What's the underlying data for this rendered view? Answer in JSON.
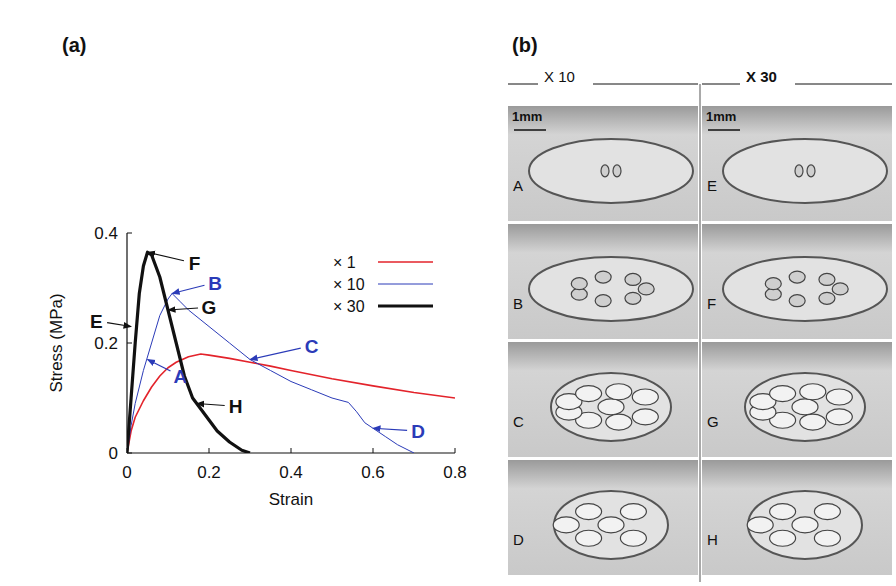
{
  "chart_data": {
    "type": "line",
    "x_label": "Strain",
    "y_label": "Stress (MPa)",
    "xlim": [
      0,
      0.8
    ],
    "xticks": [
      0,
      0.2,
      0.4,
      0.6,
      0.8
    ],
    "ylim": [
      0,
      0.4
    ],
    "yticks": [
      0,
      0.2,
      0.4
    ],
    "grid": false,
    "legend": "upper right",
    "series": [
      {
        "name": "× 1",
        "color": "#e3232b",
        "x": [
          0,
          0.01,
          0.02,
          0.04,
          0.06,
          0.08,
          0.1,
          0.12,
          0.15,
          0.18,
          0.2,
          0.25,
          0.3,
          0.35,
          0.4,
          0.5,
          0.6,
          0.7,
          0.8
        ],
        "values": [
          0,
          0.04,
          0.065,
          0.095,
          0.12,
          0.14,
          0.155,
          0.165,
          0.175,
          0.18,
          0.178,
          0.172,
          0.165,
          0.158,
          0.15,
          0.135,
          0.122,
          0.11,
          0.1
        ]
      },
      {
        "name": "× 10",
        "color": "#2b3bb8",
        "x": [
          0,
          0.01,
          0.02,
          0.04,
          0.06,
          0.08,
          0.1,
          0.11,
          0.13,
          0.15,
          0.2,
          0.25,
          0.3,
          0.35,
          0.4,
          0.45,
          0.5,
          0.54,
          0.56,
          0.58,
          0.6,
          0.63,
          0.66,
          0.7
        ],
        "values": [
          0,
          0.05,
          0.09,
          0.15,
          0.2,
          0.25,
          0.28,
          0.29,
          0.275,
          0.26,
          0.23,
          0.2,
          0.17,
          0.15,
          0.13,
          0.115,
          0.1,
          0.092,
          0.075,
          0.055,
          0.045,
          0.03,
          0.015,
          0
        ]
      },
      {
        "name": "× 30",
        "color": "#111111",
        "x": [
          0,
          0.01,
          0.02,
          0.03,
          0.04,
          0.05,
          0.06,
          0.07,
          0.08,
          0.1,
          0.12,
          0.14,
          0.16,
          0.18,
          0.2,
          0.22,
          0.25,
          0.28,
          0.3
        ],
        "values": [
          0,
          0.1,
          0.2,
          0.29,
          0.34,
          0.365,
          0.36,
          0.34,
          0.32,
          0.26,
          0.2,
          0.14,
          0.1,
          0.08,
          0.06,
          0.04,
          0.02,
          0.005,
          0
        ]
      }
    ],
    "annotations": [
      {
        "text": "E",
        "color": "#111111",
        "x": 0.01,
        "y": 0.23,
        "text_x": -0.075,
        "text_y": 0.24
      },
      {
        "text": "F",
        "color": "#111111",
        "x": 0.05,
        "y": 0.365,
        "text_x": 0.165,
        "text_y": 0.345
      },
      {
        "text": "B",
        "color": "#2b3bb8",
        "x": 0.11,
        "y": 0.29,
        "text_x": 0.215,
        "text_y": 0.31
      },
      {
        "text": "G",
        "color": "#111111",
        "x": 0.1,
        "y": 0.26,
        "text_x": 0.2,
        "text_y": 0.265
      },
      {
        "text": "A",
        "color": "#2b3bb8",
        "x": 0.05,
        "y": 0.17,
        "text_x": 0.13,
        "text_y": 0.14
      },
      {
        "text": "C",
        "color": "#2b3bb8",
        "x": 0.3,
        "y": 0.17,
        "text_x": 0.45,
        "text_y": 0.195
      },
      {
        "text": "H",
        "color": "#111111",
        "x": 0.17,
        "y": 0.09,
        "text_x": 0.265,
        "text_y": 0.085
      },
      {
        "text": "D",
        "color": "#2b3bb8",
        "x": 0.6,
        "y": 0.045,
        "text_x": 0.71,
        "text_y": 0.04
      }
    ]
  },
  "panels": {
    "a": "(a)",
    "b": "(b)"
  },
  "photos": {
    "columns": [
      {
        "title": "X 10",
        "scale_bar": "1mm",
        "frames": [
          "A",
          "B",
          "C",
          "D"
        ]
      },
      {
        "title": "X 30",
        "scale_bar": "1mm",
        "frames": [
          "E",
          "F",
          "G",
          "H"
        ]
      }
    ]
  }
}
